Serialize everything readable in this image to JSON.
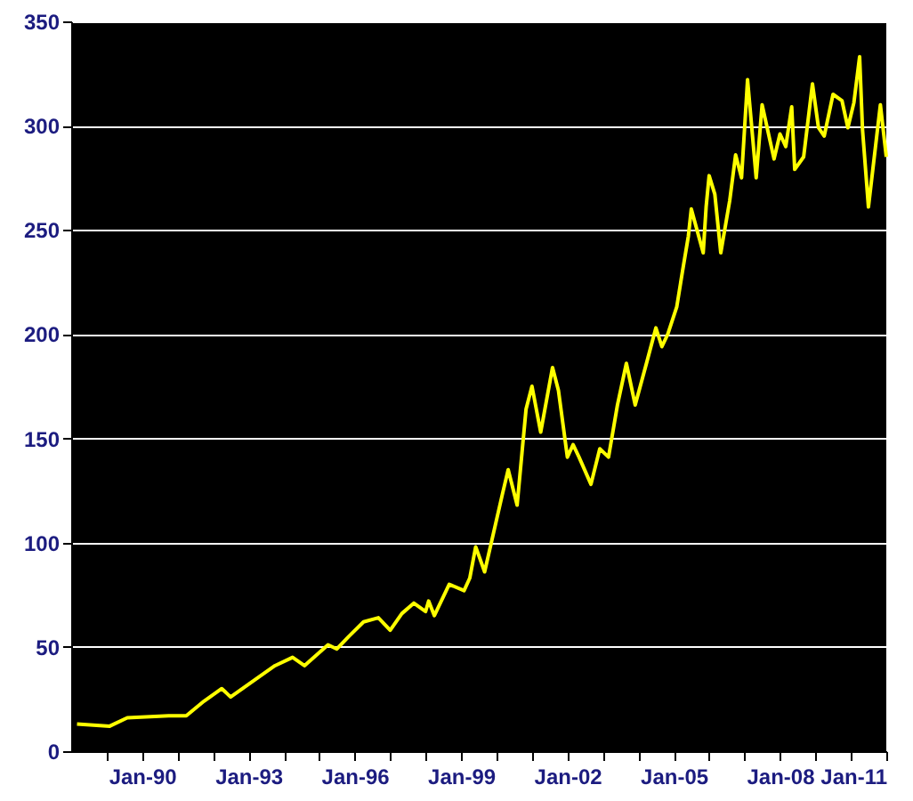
{
  "chart_data": {
    "type": "line",
    "x": [
      "1988-03",
      "1989-02",
      "1989-08",
      "1990-10",
      "1991-04",
      "1991-10",
      "1992-04",
      "1992-07",
      "1993-03",
      "1993-10",
      "1994-04",
      "1994-08",
      "1995-04",
      "1995-07",
      "1995-11",
      "1996-04",
      "1996-09",
      "1997-01",
      "1997-05",
      "1997-09",
      "1998-01",
      "1998-02",
      "1998-04",
      "1998-09",
      "1999-02",
      "1999-04",
      "1999-06",
      "1999-09",
      "2000-03",
      "2000-05",
      "2000-08",
      "2000-11",
      "2001-01",
      "2001-04",
      "2001-08",
      "2001-10",
      "2002-01",
      "2002-03",
      "2002-05",
      "2002-09",
      "2002-12",
      "2003-03",
      "2003-06",
      "2003-09",
      "2003-12",
      "2004-04",
      "2004-07",
      "2004-09",
      "2004-11",
      "2005-02",
      "2005-04",
      "2005-06",
      "2005-07",
      "2005-11",
      "2005-12",
      "2006-01",
      "2006-03",
      "2006-05",
      "2006-08",
      "2006-10",
      "2006-12",
      "2007-02",
      "2007-05",
      "2007-07",
      "2007-11",
      "2008-01",
      "2008-03",
      "2008-05",
      "2008-06",
      "2008-09",
      "2008-12",
      "2009-02",
      "2009-04",
      "2009-07",
      "2009-10",
      "2009-12",
      "2010-02",
      "2010-04",
      "2010-05",
      "2010-07",
      "2010-11",
      "2011-01"
    ],
    "series": [
      {
        "color": "#ffff00",
        "values": [
          13,
          12,
          16,
          17,
          17,
          24,
          30,
          26,
          34,
          41,
          45,
          41,
          51,
          49,
          55,
          62,
          64,
          58,
          66,
          71,
          67,
          72,
          65,
          80,
          77,
          83,
          98,
          86,
          123,
          135,
          118,
          164,
          175,
          153,
          184,
          173,
          141,
          147,
          141,
          128,
          145,
          141,
          166,
          186,
          166,
          187,
          203,
          194,
          200,
          213,
          230,
          247,
          260,
          239,
          261,
          276,
          267,
          239,
          264,
          286,
          275,
          322,
          275,
          310,
          284,
          296,
          290,
          309,
          279,
          285,
          320,
          299,
          295,
          315,
          312,
          299,
          311,
          333,
          298,
          261,
          310,
          285
        ]
      }
    ],
    "xlim": [
      "1988-01",
      "2011-01"
    ],
    "xticks": [
      {
        "value": "1989-01",
        "label": null
      },
      {
        "value": "1990-01",
        "label": "Jan-90"
      },
      {
        "value": "1991-01",
        "label": null
      },
      {
        "value": "1992-01",
        "label": null
      },
      {
        "value": "1993-01",
        "label": "Jan-93"
      },
      {
        "value": "1994-01",
        "label": null
      },
      {
        "value": "1995-01",
        "label": null
      },
      {
        "value": "1996-01",
        "label": "Jan-96"
      },
      {
        "value": "1997-01",
        "label": null
      },
      {
        "value": "1998-01",
        "label": null
      },
      {
        "value": "1999-01",
        "label": "Jan-99"
      },
      {
        "value": "2000-01",
        "label": null
      },
      {
        "value": "2001-01",
        "label": null
      },
      {
        "value": "2002-01",
        "label": "Jan-02"
      },
      {
        "value": "2003-01",
        "label": null
      },
      {
        "value": "2004-01",
        "label": null
      },
      {
        "value": "2005-01",
        "label": "Jan-05"
      },
      {
        "value": "2006-01",
        "label": null
      },
      {
        "value": "2007-01",
        "label": null
      },
      {
        "value": "2008-01",
        "label": "Jan-08"
      },
      {
        "value": "2009-01",
        "label": null
      },
      {
        "value": "2010-01",
        "label": null
      },
      {
        "value": "2011-01",
        "label": "Jan-11"
      }
    ],
    "ylim": [
      0,
      350
    ],
    "yticks": [
      0,
      50,
      100,
      150,
      200,
      250,
      300,
      350
    ],
    "grid": "y",
    "marker": "none",
    "line_style": "solid"
  }
}
